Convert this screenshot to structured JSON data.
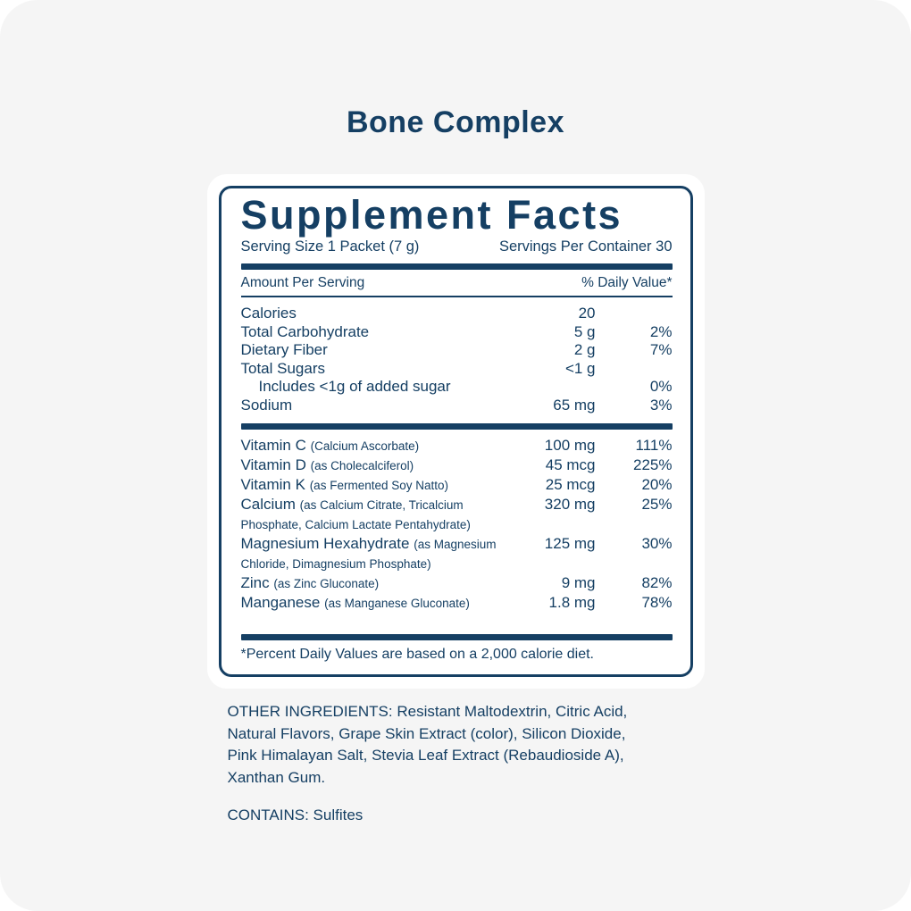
{
  "title": "Bone Complex",
  "colors": {
    "navy": "#153f63",
    "card_background": "#ffffff",
    "page_background": "#f5f5f5"
  },
  "panel": {
    "heading": "Supplement Facts",
    "serving_size": "Serving Size 1 Packet (7 g)",
    "servings_per_container": "Servings Per Container 30",
    "columns": {
      "amount_header": "Amount Per Serving",
      "daily_value_header": "% Daily Value*"
    },
    "main_rows": [
      {
        "label": "Calories",
        "amount": "20",
        "dv": ""
      },
      {
        "label": "Total Carbohydrate",
        "amount": "5 g",
        "dv": "2%"
      },
      {
        "label": "Dietary Fiber",
        "amount": "2 g",
        "dv": "7%"
      },
      {
        "label": "Total Sugars",
        "amount": "<1 g",
        "dv": ""
      },
      {
        "label": "Includes <1g of added sugar",
        "amount": "",
        "dv": "0%"
      },
      {
        "label": "Sodium",
        "amount": "65 mg",
        "dv": "3%"
      }
    ],
    "nutrient_rows": [
      {
        "label": "Vitamin C",
        "detail": "(Calcium Ascorbate)",
        "amount": "100 mg",
        "dv": "111%"
      },
      {
        "label": "Vitamin D",
        "detail": "(as Cholecalciferol)",
        "amount": "45 mcg",
        "dv": "225%"
      },
      {
        "label": "Vitamin K",
        "detail": "(as Fermented Soy Natto)",
        "amount": "25 mcg",
        "dv": "20%"
      },
      {
        "label": "Calcium",
        "detail": "(as Calcium Citrate, Tricalcium Phosphate, Calcium Lactate Pentahydrate)",
        "amount": "320 mg",
        "dv": "25%"
      },
      {
        "label": "Magnesium Hexahydrate",
        "detail": "(as Magnesium Chloride, Dimagnesium Phosphate)",
        "amount": "125 mg",
        "dv": "30%"
      },
      {
        "label": "Zinc",
        "detail": "(as Zinc Gluconate)",
        "amount": "9 mg",
        "dv": "82%"
      },
      {
        "label": "Manganese",
        "detail": "(as Manganese Gluconate)",
        "amount": "1.8 mg",
        "dv": "78%"
      }
    ],
    "footnote": "*Percent Daily Values are based on a 2,000 calorie diet."
  },
  "bottom": {
    "other_ingredients_lines": [
      "OTHER INGREDIENTS: Resistant Maltodextrin, Citric Acid,",
      "Natural Flavors, Grape Skin Extract (color), Silicon Dioxide,",
      "Pink Himalayan Salt, Stevia Leaf Extract (Rebaudioside A),",
      "Xanthan Gum."
    ],
    "contains": "CONTAINS: Sulfites"
  }
}
